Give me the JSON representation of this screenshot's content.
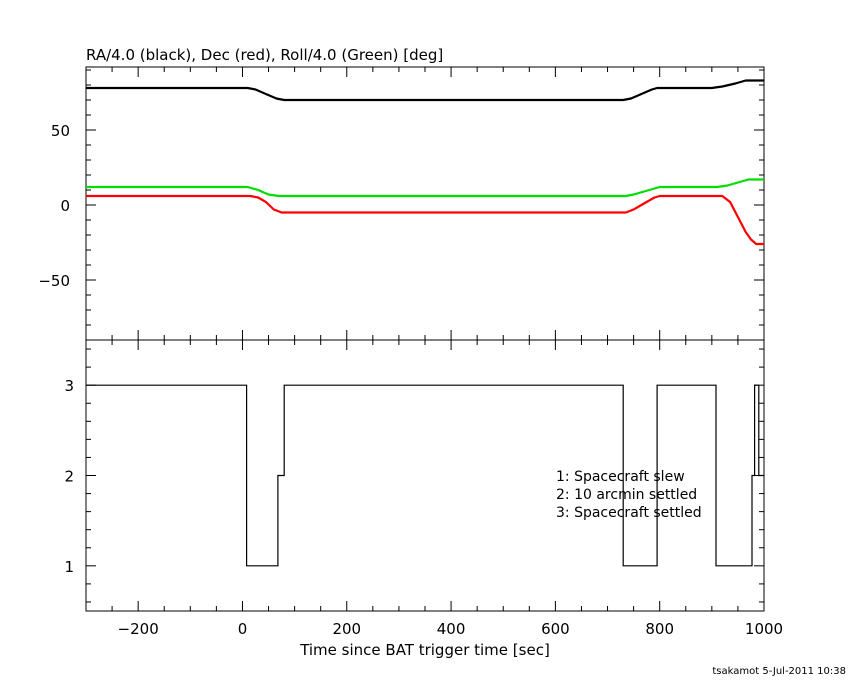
{
  "chart_data": [
    {
      "type": "line",
      "title": "RA/4.0 (black), Dec (red), Roll/4.0 (Green) [deg]",
      "xlim": [
        -300,
        1000
      ],
      "ylim": [
        -90,
        92
      ],
      "yticks": [
        -50,
        0,
        50
      ],
      "ytick_labels": [
        "−50",
        "0",
        "50"
      ],
      "series": [
        {
          "color": "#000000",
          "x": [
            -300,
            10,
            25,
            45,
            65,
            80,
            345,
            730,
            745,
            765,
            785,
            795,
            900,
            920,
            945,
            965,
            1000
          ],
          "y": [
            78,
            78,
            77,
            74,
            71,
            70,
            70,
            70,
            71,
            74,
            77,
            78,
            78,
            79,
            81,
            83,
            83
          ]
        },
        {
          "color": "#ff0000",
          "x": [
            -300,
            15,
            30,
            45,
            60,
            75,
            345,
            735,
            750,
            770,
            790,
            800,
            920,
            935,
            950,
            965,
            975,
            985,
            1000
          ],
          "y": [
            6,
            6,
            5,
            2,
            -3,
            -5,
            -5,
            -5,
            -3,
            1,
            5,
            6,
            6,
            2,
            -8,
            -18,
            -23,
            -26,
            -26
          ]
        },
        {
          "color": "#00dd00",
          "x": [
            -300,
            10,
            30,
            50,
            70,
            345,
            735,
            750,
            770,
            790,
            800,
            910,
            930,
            950,
            970,
            1000
          ],
          "y": [
            12,
            12,
            10,
            7,
            6,
            6,
            6,
            7,
            9,
            11,
            12,
            12,
            13,
            15,
            17,
            17
          ]
        }
      ]
    },
    {
      "type": "line",
      "xlim": [
        -300,
        1000
      ],
      "ylim": [
        0.5,
        3.5
      ],
      "yticks": [
        1,
        2,
        3
      ],
      "ytick_labels": [
        "1",
        "2",
        "3"
      ],
      "xticks": [
        -200,
        0,
        200,
        400,
        600,
        800,
        1000
      ],
      "xtick_labels": [
        "−200",
        "0",
        "200",
        "400",
        "600",
        "800",
        "1000"
      ],
      "xlabel": "Time since BAT trigger time [sec]",
      "step_series": {
        "color": "#000000",
        "x": [
          -300,
          8,
          8,
          68,
          68,
          80,
          80,
          730,
          730,
          795,
          795,
          908,
          908,
          977,
          977,
          982,
          982,
          990,
          990,
          1000
        ],
        "y": [
          3,
          3,
          1,
          1,
          2,
          2,
          3,
          3,
          1,
          1,
          3,
          3,
          1,
          1,
          2,
          2,
          3,
          3,
          2,
          2
        ]
      },
      "annotations": [
        "1: Spacecraft slew",
        "2: 10 arcmin settled",
        "3: Spacecraft settled"
      ]
    }
  ],
  "footer": "tsakamot  5-Jul-2011 10:38"
}
